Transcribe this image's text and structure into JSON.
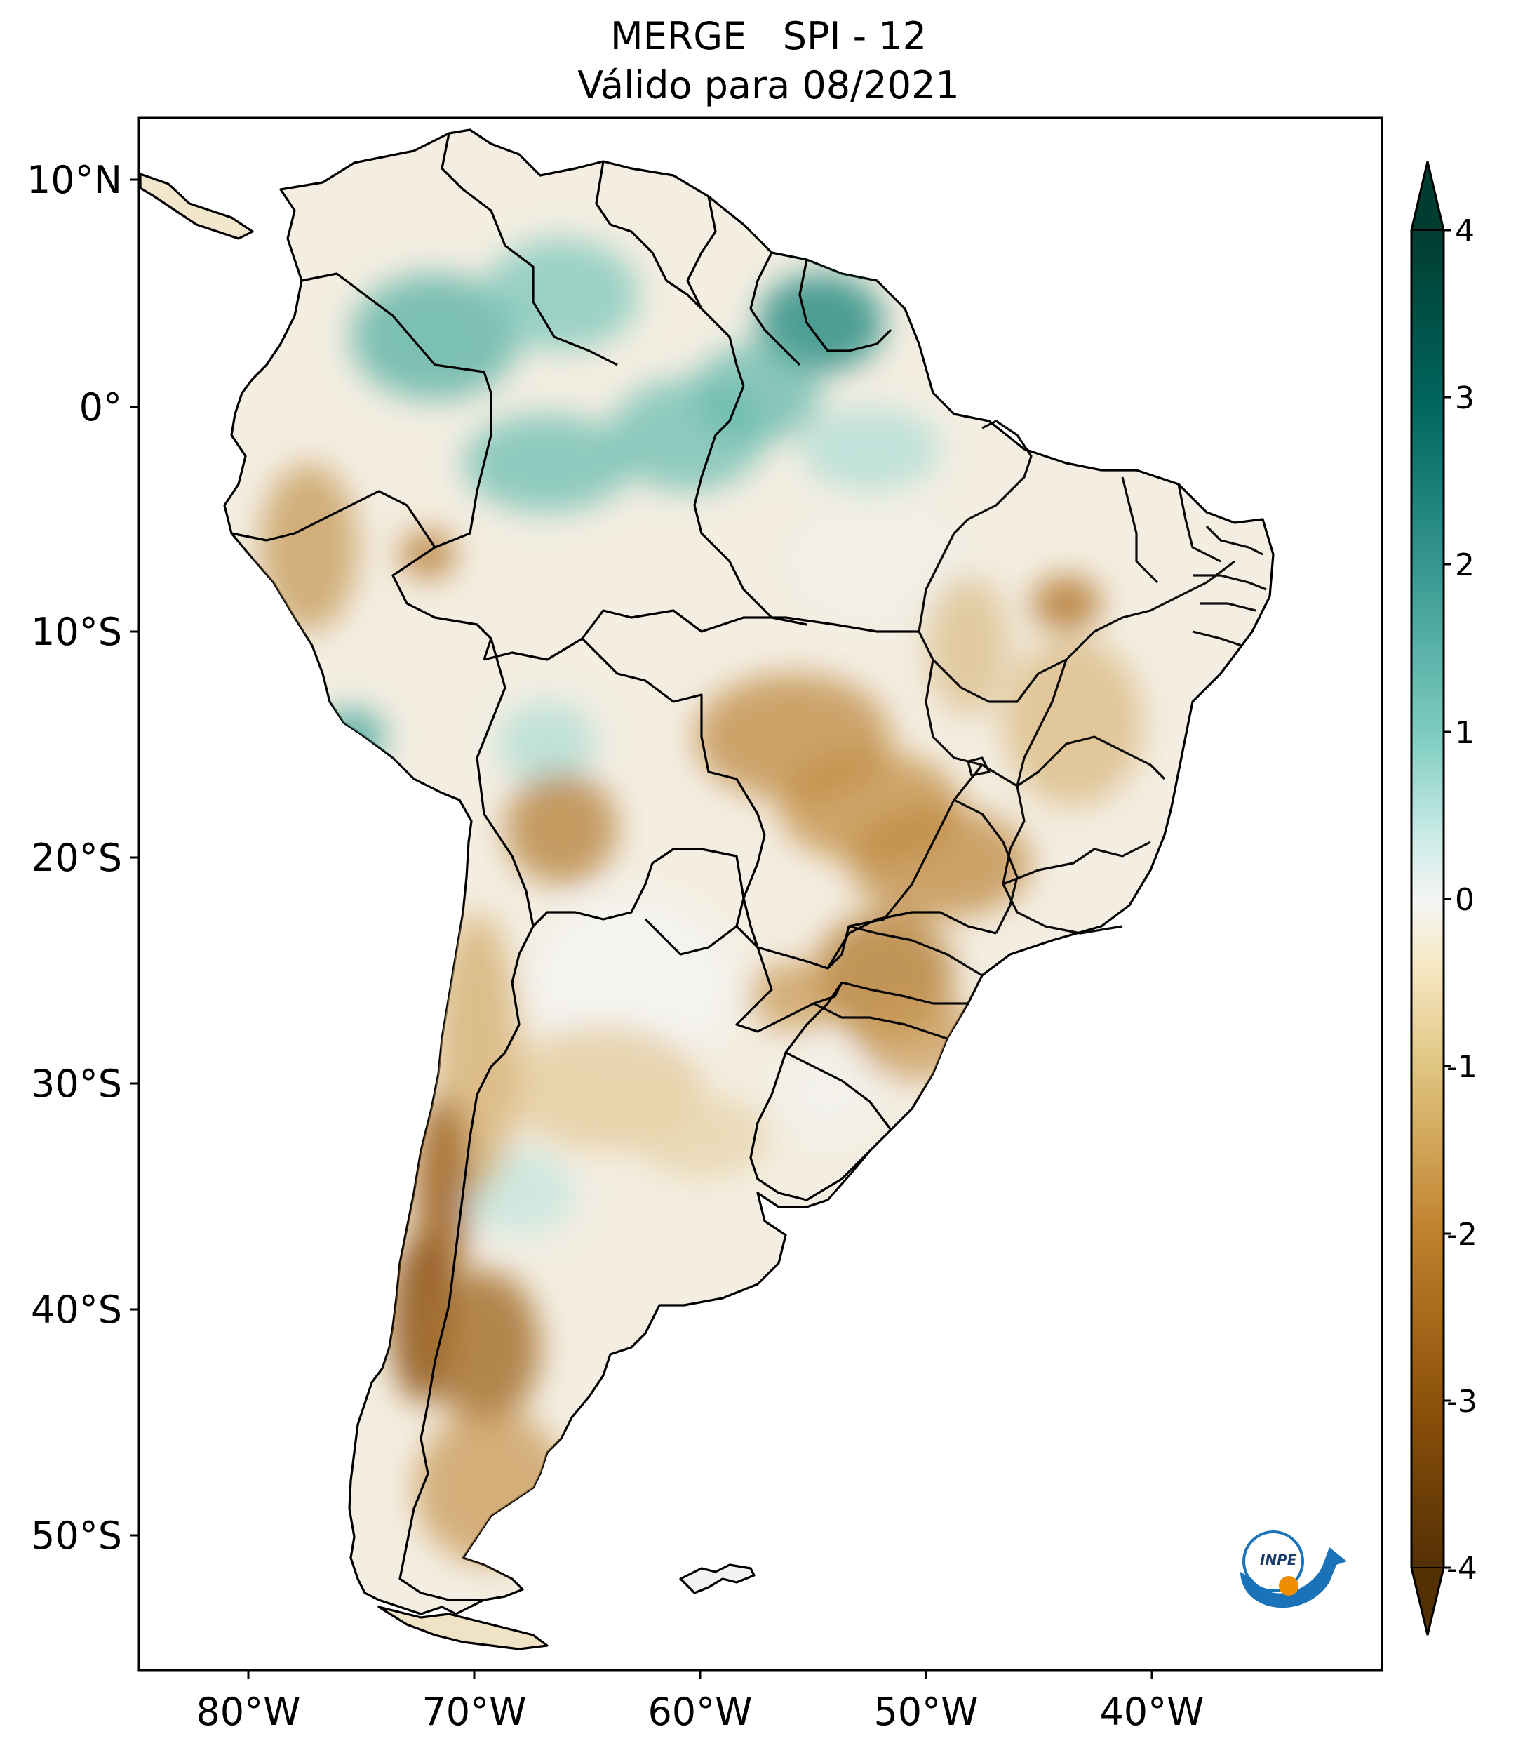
{
  "map": {
    "title_line1": "MERGE   SPI - 12",
    "title_line2": "Válido para 08/2021",
    "lat_labels": [
      "10°N",
      "0°",
      "10°S",
      "20°S",
      "30°S",
      "40°S",
      "50°S"
    ],
    "lon_labels": [
      "80°W",
      "70°W",
      "60°W",
      "50°W",
      "40°W"
    ],
    "extent": {
      "lon": [
        -85,
        -30
      ],
      "lat": [
        -56,
        12.5
      ]
    },
    "colorbar": {
      "ticks": [
        "4",
        "3",
        "2",
        "1",
        "0",
        "-1",
        "-2",
        "-3",
        "-4"
      ],
      "range": [
        -4,
        4
      ],
      "extend": "both",
      "colors": {
        "very_dry": "#543005",
        "dry": "#bf812d",
        "slightly_dry": "#f6e8c3",
        "neutral": "#f5f5f5",
        "slightly_wet": "#c7eae5",
        "wet": "#35978f",
        "very_wet": "#003c30"
      }
    },
    "logo": {
      "text": "INPE"
    }
  }
}
